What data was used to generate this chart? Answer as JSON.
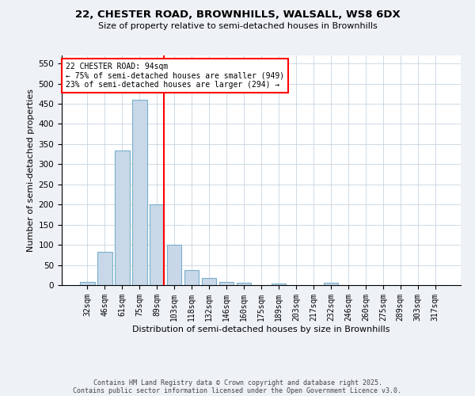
{
  "title_line1": "22, CHESTER ROAD, BROWNHILLS, WALSALL, WS8 6DX",
  "title_line2": "Size of property relative to semi-detached houses in Brownhills",
  "xlabel": "Distribution of semi-detached houses by size in Brownhills",
  "ylabel": "Number of semi-detached properties",
  "categories": [
    "32sqm",
    "46sqm",
    "61sqm",
    "75sqm",
    "89sqm",
    "103sqm",
    "118sqm",
    "132sqm",
    "146sqm",
    "160sqm",
    "175sqm",
    "189sqm",
    "203sqm",
    "217sqm",
    "232sqm",
    "246sqm",
    "260sqm",
    "275sqm",
    "289sqm",
    "303sqm",
    "317sqm"
  ],
  "values": [
    8,
    82,
    335,
    460,
    200,
    100,
    38,
    18,
    8,
    6,
    0,
    4,
    0,
    0,
    5,
    0,
    0,
    0,
    0,
    0,
    0
  ],
  "bar_color": "#c8d8e8",
  "bar_edge_color": "#7ab0cc",
  "vline_index": 4,
  "vline_color": "red",
  "annotation_title": "22 CHESTER ROAD: 94sqm",
  "annotation_line1": "← 75% of semi-detached houses are smaller (949)",
  "annotation_line2": "23% of semi-detached houses are larger (294) →",
  "annotation_box_color": "white",
  "annotation_box_edgecolor": "red",
  "ylim": [
    0,
    570
  ],
  "yticks": [
    0,
    50,
    100,
    150,
    200,
    250,
    300,
    350,
    400,
    450,
    500,
    550
  ],
  "footer_line1": "Contains HM Land Registry data © Crown copyright and database right 2025.",
  "footer_line2": "Contains public sector information licensed under the Open Government Licence v3.0.",
  "bg_color": "#eef2f7",
  "plot_bg_color": "#ffffff",
  "grid_color": "#c8d4e0"
}
